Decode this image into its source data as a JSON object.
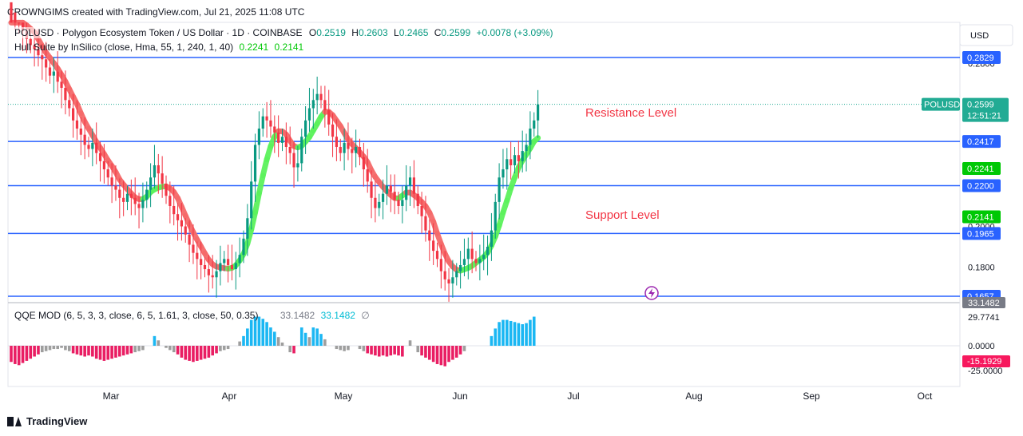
{
  "header": {
    "created": "CROWNGIMS created with TradingView.com, Jul 21, 2025 11:08 UTC"
  },
  "legend": {
    "symbol": "POLUSD · Polygon Ecosystem Token / US Dollar · 1D · COINBASE",
    "o_label": "O",
    "o_value": "0.2519",
    "h_label": "H",
    "h_value": "0.2603",
    "l_label": "L",
    "l_value": "0.2465",
    "c_label": "C",
    "c_value": "0.2599",
    "change": "+0.0078 (+3.09%)",
    "hull_name": "Hull Suite by InSilico (close, Hma, 55, 1, 240, 1, 40)",
    "hull_v1": "0.2241",
    "hull_v2": "0.2141",
    "qqe_name": "QQE MOD (6, 5, 3, 3, close, 6, 5, 1.61, 3, close, 50, 0.35)",
    "qqe_v1": "33.1482",
    "qqe_v2": "33.1482",
    "qqe_v3": "∅"
  },
  "annotations": {
    "resistance": "Resistance Level",
    "support": "Support Level"
  },
  "price_axis": {
    "currency": "USD",
    "ticks": [
      "0.2800",
      "0.2000",
      "0.1800"
    ],
    "levels": [
      {
        "label": "0.2829",
        "value": 0.2829,
        "color": "#2962ff"
      },
      {
        "label": "0.2417",
        "value": 0.2417,
        "color": "#2962ff"
      },
      {
        "label": "0.2200",
        "value": 0.22,
        "color": "#2962ff"
      },
      {
        "label": "0.1965",
        "value": 0.1965,
        "color": "#2962ff"
      },
      {
        "label": "0.1657",
        "value": 0.1657,
        "color": "#2962ff"
      }
    ],
    "hull_tags": [
      {
        "label": "0.2241",
        "value": 0.2241,
        "color": "#00c805"
      },
      {
        "label": "0.2141",
        "value": 0.2141,
        "color": "#00c805"
      }
    ],
    "last_price": {
      "symbol": "POLUSD",
      "label": "0.2599",
      "countdown": "12:51:21",
      "value": 0.2599,
      "color": "#22ab94"
    }
  },
  "qqe_axis": {
    "ticks": [
      "29.7741",
      "0.0000",
      "-25.0000"
    ],
    "top_tag": "33.1482",
    "neg_tag": "-15.1929",
    "neg_color": "#f7195e"
  },
  "time_axis": {
    "labels": [
      "Mar",
      "Apr",
      "May",
      "Jun",
      "Jul",
      "Aug",
      "Sep",
      "Oct"
    ]
  },
  "footer": {
    "brand": "TradingView"
  },
  "chart_data": {
    "type": "candlestick",
    "price_range": [
      0.16,
      0.29
    ],
    "horizontal_levels": [
      0.2829,
      0.2417,
      0.22,
      0.1965,
      0.1657
    ],
    "close_series": [
      0.31,
      0.305,
      0.3,
      0.296,
      0.292,
      0.289,
      0.287,
      0.284,
      0.282,
      0.278,
      0.274,
      0.276,
      0.271,
      0.268,
      0.262,
      0.258,
      0.252,
      0.248,
      0.245,
      0.24,
      0.238,
      0.241,
      0.236,
      0.232,
      0.228,
      0.224,
      0.22,
      0.218,
      0.214,
      0.212,
      0.216,
      0.214,
      0.211,
      0.209,
      0.213,
      0.218,
      0.224,
      0.23,
      0.226,
      0.221,
      0.215,
      0.21,
      0.206,
      0.203,
      0.2,
      0.196,
      0.191,
      0.187,
      0.184,
      0.181,
      0.179,
      0.176,
      0.175,
      0.178,
      0.182,
      0.184,
      0.181,
      0.179,
      0.182,
      0.186,
      0.194,
      0.204,
      0.222,
      0.24,
      0.248,
      0.254,
      0.252,
      0.249,
      0.246,
      0.241,
      0.244,
      0.239,
      0.236,
      0.229,
      0.231,
      0.244,
      0.252,
      0.258,
      0.262,
      0.265,
      0.262,
      0.257,
      0.25,
      0.244,
      0.239,
      0.236,
      0.241,
      0.238,
      0.236,
      0.239,
      0.234,
      0.228,
      0.222,
      0.214,
      0.209,
      0.212,
      0.216,
      0.22,
      0.217,
      0.213,
      0.21,
      0.213,
      0.22,
      0.224,
      0.216,
      0.21,
      0.205,
      0.198,
      0.193,
      0.188,
      0.184,
      0.178,
      0.174,
      0.172,
      0.175,
      0.178,
      0.181,
      0.184,
      0.189,
      0.184,
      0.182,
      0.184,
      0.186,
      0.19,
      0.198,
      0.212,
      0.224,
      0.228,
      0.233,
      0.23,
      0.235,
      0.232,
      0.237,
      0.24,
      0.248,
      0.252,
      0.2599
    ],
    "qqe_values": [
      -15,
      -17,
      -18,
      -16,
      -14,
      -12,
      -10,
      -8,
      -6,
      -5,
      -4,
      -3,
      -3,
      -2,
      -4,
      -5,
      -7,
      -8,
      -9,
      -10,
      -9,
      -10,
      -12,
      -13,
      -14,
      -13,
      -12,
      -11,
      -10,
      -9,
      -8,
      -7,
      -6,
      -5,
      -4,
      0,
      0,
      9,
      5,
      0,
      -2,
      -4,
      -6,
      -8,
      -11,
      -13,
      -14,
      -15,
      -14,
      -13,
      -12,
      -11,
      -9,
      -7,
      -5,
      -4,
      -3,
      0,
      0,
      4,
      9,
      16,
      24,
      27,
      27,
      25,
      22,
      17,
      13,
      8,
      3,
      0,
      -6,
      -7,
      0,
      17,
      12,
      8,
      17,
      16,
      11,
      6,
      0,
      0,
      -3,
      -4,
      -5,
      -4,
      0,
      0,
      -3,
      -5,
      -7,
      -8,
      -9,
      -10,
      -9,
      -10,
      -9,
      -8,
      -9,
      -10,
      0,
      5,
      0,
      -6,
      -9,
      -11,
      -13,
      -15,
      -17,
      -18,
      -19,
      -15,
      -13,
      -11,
      -8,
      -5,
      0,
      0,
      0,
      0,
      0,
      0,
      9,
      16,
      22,
      24,
      24,
      23,
      22,
      21,
      20,
      21,
      24,
      27
    ],
    "series": [
      {
        "name": "Hull Suite by InSilico (close, Hma, 55, 1, 240, 1, 40)",
        "values": [
          0.2241,
          0.2141
        ]
      },
      {
        "name": "QQE MOD (6, 5, 3, 3, close, 6, 5, 1.61, 3, close, 50, 0.35)",
        "values": [
          33.1482
        ]
      }
    ],
    "qqe_range": [
      -35,
      40
    ],
    "x_labels": [
      "Mar",
      "Apr",
      "May",
      "Jun",
      "Jul",
      "Aug",
      "Sep",
      "Oct"
    ],
    "grid": true
  }
}
